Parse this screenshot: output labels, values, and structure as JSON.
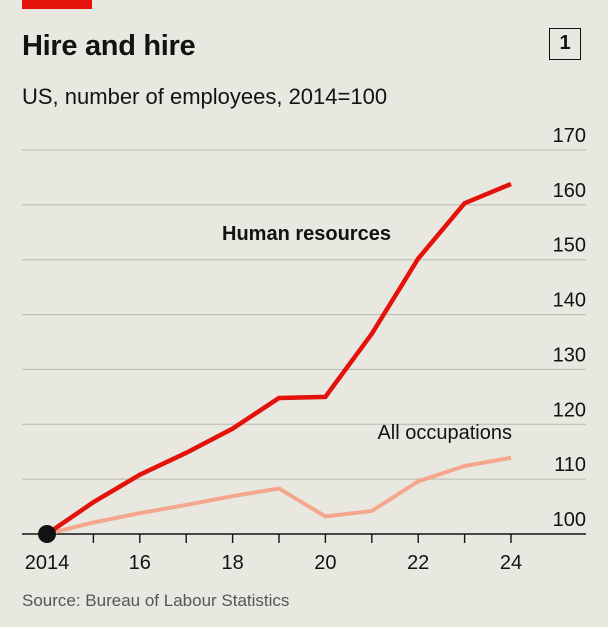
{
  "header": {
    "title": "Hire and hire",
    "chart_number": "1",
    "subtitle": "US, number of employees, 2014=100"
  },
  "footer": {
    "source": "Source: Bureau of Labour Statistics"
  },
  "colors": {
    "background": "#e9e8e0",
    "human_resources": "#e3120b",
    "all_occupations": "#f4a78d",
    "gridline": "#b7b7b0",
    "axis": "#121212",
    "accent_tag": "#e3120b"
  },
  "chart_data": {
    "type": "line",
    "title": "Hire and hire",
    "subtitle": "US, number of employees, 2014=100",
    "xlabel": "",
    "ylabel": "",
    "xlim": [
      2014,
      2024
    ],
    "ylim": [
      100,
      170
    ],
    "y_ticks": [
      100,
      110,
      120,
      130,
      140,
      150,
      160,
      170
    ],
    "y_tick_position": "right",
    "x_ticks": [
      2014,
      2016,
      2018,
      2020,
      2022,
      2024
    ],
    "x_tick_labels": [
      "2014",
      "16",
      "18",
      "20",
      "22",
      "24"
    ],
    "grid": "horizontal",
    "legend": "direct labels",
    "series": [
      {
        "name": "Human resources",
        "color": "#e3120b",
        "label_style": "bold",
        "x": [
          2014,
          2015,
          2016,
          2017,
          2018,
          2019,
          2020,
          2021,
          2022,
          2023,
          2024
        ],
        "values": [
          100,
          105.8,
          110.8,
          114.8,
          119.2,
          124.8,
          125,
          136.5,
          150.2,
          160.3,
          163.8
        ]
      },
      {
        "name": "All occupations",
        "color": "#f4a78d",
        "label_style": "regular",
        "x": [
          2014,
          2015,
          2016,
          2017,
          2018,
          2019,
          2020,
          2021,
          2022,
          2023,
          2024
        ],
        "values": [
          100,
          102.1,
          103.8,
          105.3,
          106.9,
          108.3,
          103.2,
          104.2,
          109.6,
          112.4,
          113.9
        ]
      }
    ],
    "base_marker": {
      "x": 2014,
      "y": 100
    }
  }
}
